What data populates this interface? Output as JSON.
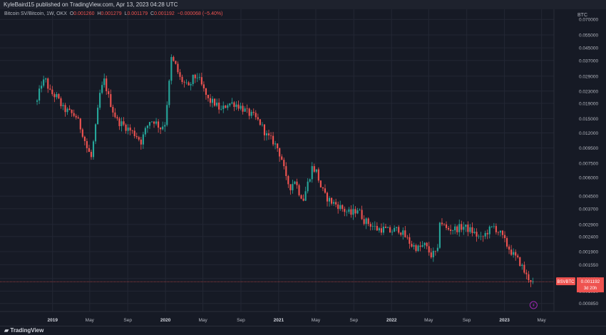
{
  "header": {
    "published": "KyleBaird15 published on TradingView.com, Apr 13, 2023 04:28 UTC"
  },
  "legend": {
    "symbol": "Bitcoin SV/Bitcoin, 1W, OKX",
    "o_label": "O",
    "o": "0.001260",
    "h_label": "H",
    "h": "0.001279",
    "l_label": "L",
    "l": "0.001179",
    "c_label": "C",
    "c": "0.001192",
    "change": "−0.000068 (−5.40%)"
  },
  "price_tag": {
    "symbol": "BSVBTC",
    "price": "0.001192",
    "countdown": "3d 20h"
  },
  "footer": {
    "brand": "TradingView"
  },
  "colors": {
    "up": "#26a69a",
    "down": "#ef5350",
    "bg": "#161a25",
    "grid": "#232734",
    "text": "#b2b5be"
  },
  "chart_data": {
    "type": "candlestick",
    "title": "Bitcoin SV/Bitcoin, 1W, OKX",
    "y_unit": "BTC",
    "y_scale": "log",
    "ylim": [
      0.00075,
      0.075
    ],
    "y_ticks": [
      "0.070000",
      "0.055000",
      "0.045000",
      "0.037000",
      "0.029000",
      "0.023000",
      "0.019000",
      "0.015000",
      "0.012000",
      "0.009500",
      "0.007500",
      "0.006000",
      "0.004500",
      "0.003700",
      "0.002900",
      "0.002400",
      "0.001900",
      "0.001550",
      "0.001250",
      "0.001030",
      "0.000850"
    ],
    "x_ticks": [
      "2019",
      "May",
      "Sep",
      "2020",
      "May",
      "Sep",
      "2021",
      "May",
      "Sep",
      "2022",
      "May",
      "Sep",
      "2023",
      "May"
    ],
    "x_tick_dates": [
      "2019-01-01",
      "2019-05-01",
      "2019-09-01",
      "2020-01-01",
      "2020-05-01",
      "2020-09-01",
      "2021-01-01",
      "2021-05-01",
      "2021-09-01",
      "2022-01-01",
      "2022-05-01",
      "2022-09-01",
      "2023-01-01",
      "2023-05-01"
    ],
    "x_range": [
      "2018-07-15",
      "2023-06-10"
    ],
    "last_price": 0.001192,
    "close_path": [
      [
        "2018-11-12",
        0.0195
      ],
      [
        "2018-11-26",
        0.026
      ],
      [
        "2018-12-10",
        0.027
      ],
      [
        "2018-12-24",
        0.0225
      ],
      [
        "2019-01-14",
        0.021
      ],
      [
        "2019-02-04",
        0.0175
      ],
      [
        "2019-02-25",
        0.0165
      ],
      [
        "2019-03-18",
        0.0155
      ],
      [
        "2019-04-08",
        0.012
      ],
      [
        "2019-04-22",
        0.0095
      ],
      [
        "2019-05-06",
        0.0082
      ],
      [
        "2019-05-20",
        0.013
      ],
      [
        "2019-06-03",
        0.022
      ],
      [
        "2019-06-17",
        0.027
      ],
      [
        "2019-07-01",
        0.021
      ],
      [
        "2019-07-15",
        0.017
      ],
      [
        "2019-07-29",
        0.0145
      ],
      [
        "2019-08-19",
        0.0135
      ],
      [
        "2019-09-09",
        0.0125
      ],
      [
        "2019-09-30",
        0.0115
      ],
      [
        "2019-10-14",
        0.0105
      ],
      [
        "2019-10-28",
        0.0125
      ],
      [
        "2019-11-11",
        0.0145
      ],
      [
        "2019-11-25",
        0.0145
      ],
      [
        "2019-12-16",
        0.013
      ],
      [
        "2019-12-30",
        0.014
      ],
      [
        "2020-01-13",
        0.026
      ],
      [
        "2020-01-20",
        0.038
      ],
      [
        "2020-02-03",
        0.034
      ],
      [
        "2020-02-17",
        0.028
      ],
      [
        "2020-03-02",
        0.026
      ],
      [
        "2020-03-16",
        0.024
      ],
      [
        "2020-03-30",
        0.028
      ],
      [
        "2020-04-13",
        0.029
      ],
      [
        "2020-04-27",
        0.025
      ],
      [
        "2020-05-18",
        0.02
      ],
      [
        "2020-06-08",
        0.019
      ],
      [
        "2020-06-29",
        0.017
      ],
      [
        "2020-07-20",
        0.019
      ],
      [
        "2020-08-10",
        0.019
      ],
      [
        "2020-08-31",
        0.018
      ],
      [
        "2020-09-21",
        0.0165
      ],
      [
        "2020-10-12",
        0.0155
      ],
      [
        "2020-11-02",
        0.014
      ],
      [
        "2020-11-23",
        0.0115
      ],
      [
        "2020-12-14",
        0.0105
      ],
      [
        "2020-12-28",
        0.0095
      ],
      [
        "2021-01-11",
        0.008
      ],
      [
        "2021-01-25",
        0.0058
      ],
      [
        "2021-02-08",
        0.0052
      ],
      [
        "2021-02-22",
        0.0058
      ],
      [
        "2021-03-08",
        0.0048
      ],
      [
        "2021-03-22",
        0.0043
      ],
      [
        "2021-04-05",
        0.0055
      ],
      [
        "2021-04-19",
        0.007
      ],
      [
        "2021-05-03",
        0.0066
      ],
      [
        "2021-05-17",
        0.0052
      ],
      [
        "2021-05-31",
        0.0045
      ],
      [
        "2021-06-21",
        0.0041
      ],
      [
        "2021-07-12",
        0.0039
      ],
      [
        "2021-08-02",
        0.0036
      ],
      [
        "2021-08-23",
        0.0034
      ],
      [
        "2021-09-13",
        0.0037
      ],
      [
        "2021-10-04",
        0.0031
      ],
      [
        "2021-10-25",
        0.0029
      ],
      [
        "2021-11-15",
        0.0027
      ],
      [
        "2021-12-06",
        0.0027
      ],
      [
        "2021-12-27",
        0.0026
      ],
      [
        "2022-01-24",
        0.0027
      ],
      [
        "2022-02-14",
        0.0024
      ],
      [
        "2022-03-07",
        0.0021
      ],
      [
        "2022-03-28",
        0.002
      ],
      [
        "2022-04-18",
        0.0021
      ],
      [
        "2022-05-09",
        0.0018
      ],
      [
        "2022-05-30",
        0.0019
      ],
      [
        "2022-06-06",
        0.0031
      ],
      [
        "2022-06-27",
        0.0027
      ],
      [
        "2022-07-25",
        0.0027
      ],
      [
        "2022-08-22",
        0.0028
      ],
      [
        "2022-09-19",
        0.0026
      ],
      [
        "2022-10-17",
        0.0023
      ],
      [
        "2022-11-07",
        0.0026
      ],
      [
        "2022-11-28",
        0.0028
      ],
      [
        "2022-12-19",
        0.0025
      ],
      [
        "2023-01-09",
        0.0021
      ],
      [
        "2023-01-30",
        0.0018
      ],
      [
        "2023-02-20",
        0.0016
      ],
      [
        "2023-03-13",
        0.0013
      ],
      [
        "2023-04-03",
        0.00119
      ]
    ]
  }
}
